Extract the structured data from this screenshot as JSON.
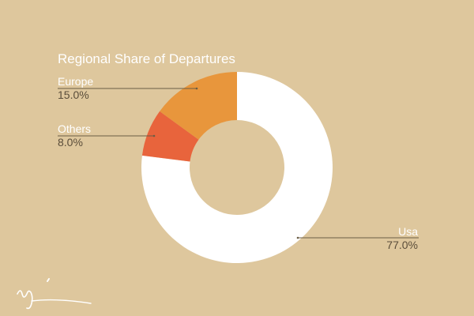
{
  "chart_data": {
    "type": "pie",
    "title": "Regional Share of Departures",
    "donut": true,
    "slices": [
      {
        "label": "Usa",
        "value": 77.0,
        "display": "77.0%",
        "color": "#ffffff"
      },
      {
        "label": "Others",
        "value": 8.0,
        "display": "8.0%",
        "color": "#e8643c"
      },
      {
        "label": "Europe",
        "value": 15.0,
        "display": "15.0%",
        "color": "#e8963c"
      }
    ],
    "legend": "none",
    "start_angle": "12 o'clock",
    "direction": "clockwise",
    "background": "#dec79d"
  },
  "signature_watermark": "signature"
}
